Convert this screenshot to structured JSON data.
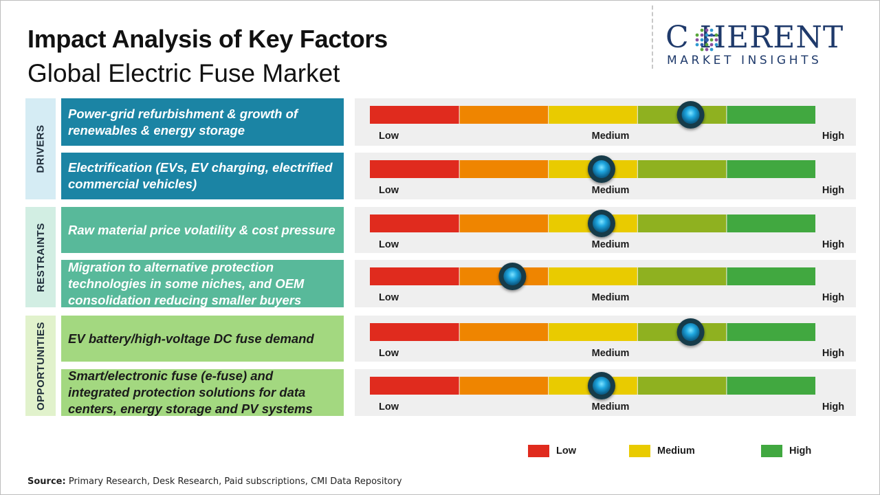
{
  "title": "Impact Analysis of Key Factors",
  "subtitle": "Global Electric Fuse Market",
  "logo": {
    "main": "C HERENT",
    "sub": "MARKET INSIGHTS"
  },
  "colors": {
    "drivers_cat": "#d5ecf4",
    "drivers_box": "#1b84a4",
    "restraints_cat": "#d2eee3",
    "restraints_box": "#58b99a",
    "opportunities_cat": "#e1f2cc",
    "opportunities_box": "#a3d880",
    "segments": [
      "#e02b1e",
      "#ef8500",
      "#e9cb00",
      "#8fb120",
      "#41a840"
    ],
    "knob": "#1fa7e0"
  },
  "chart_data": {
    "type": "impact-gauge",
    "title": "Impact Analysis of Key Factors",
    "subtitle": "Global Electric Fuse Market",
    "scale_labels": [
      "Low",
      "Medium",
      "High"
    ],
    "scale_range": [
      0,
      5
    ],
    "categories": [
      {
        "name": "DRIVERS",
        "factors": [
          {
            "label": "Power-grid refurbishment & growth of renewables & energy storage",
            "impact": 3.6
          },
          {
            "label": "Electrification (EVs, EV charging, electrified commercial vehicles)",
            "impact": 2.6
          }
        ]
      },
      {
        "name": "RESTRAINTS",
        "factors": [
          {
            "label": "Raw material price volatility & cost pressure",
            "impact": 2.6
          },
          {
            "label": "Migration to alternative protection technologies in some niches, and OEM consolidation reducing smaller buyers",
            "impact": 1.6
          }
        ]
      },
      {
        "name": "OPPORTUNITIES",
        "factors": [
          {
            "label": "EV battery/high-voltage DC fuse demand",
            "impact": 3.6
          },
          {
            "label": "Smart/electronic fuse (e-fuse) and integrated protection solutions for data centers, energy storage and PV systems",
            "impact": 2.6
          }
        ]
      }
    ],
    "legend": [
      {
        "label": "Low",
        "color": "#e02b1e"
      },
      {
        "label": "Medium",
        "color": "#e9cb00"
      },
      {
        "label": "High",
        "color": "#41a840"
      }
    ]
  },
  "source": {
    "label": "Source:",
    "text": "Primary Research, Desk Research, Paid subscriptions, CMI Data Repository"
  }
}
